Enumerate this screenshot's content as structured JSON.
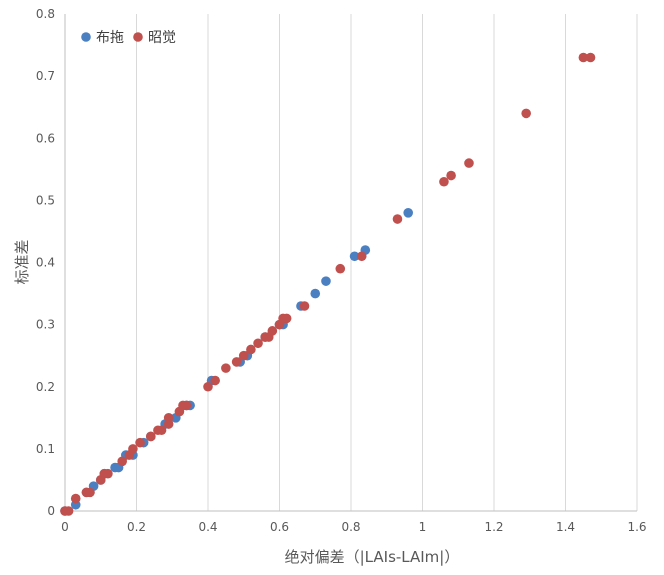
{
  "chart_data": {
    "type": "scatter",
    "xlabel": "绝对偏差（|LAIs-LAIm|）",
    "ylabel": "标准差",
    "xlim": [
      0,
      1.6
    ],
    "ylim": [
      0,
      0.8
    ],
    "x_ticks": [
      "0",
      "0.2",
      "0.4",
      "0.6",
      "0.8",
      "1",
      "1.2",
      "1.4",
      "1.6"
    ],
    "y_ticks": [
      "0",
      "0.1",
      "0.2",
      "0.3",
      "0.4",
      "0.5",
      "0.6",
      "0.7",
      "0.8"
    ],
    "grid": "vertical",
    "legend_position": "top-left",
    "colors": {
      "series1": "#4a7fc1",
      "series2": "#c0504d",
      "grid": "#d9d9d9",
      "axis": "#bfbfbf"
    },
    "series": [
      {
        "name": "布拖",
        "color": "#4a7fc1",
        "points": [
          [
            0.0,
            0.0
          ],
          [
            0.03,
            0.01
          ],
          [
            0.06,
            0.03
          ],
          [
            0.08,
            0.04
          ],
          [
            0.1,
            0.05
          ],
          [
            0.11,
            0.06
          ],
          [
            0.14,
            0.07
          ],
          [
            0.15,
            0.07
          ],
          [
            0.17,
            0.09
          ],
          [
            0.19,
            0.09
          ],
          [
            0.22,
            0.11
          ],
          [
            0.24,
            0.12
          ],
          [
            0.28,
            0.14
          ],
          [
            0.31,
            0.15
          ],
          [
            0.34,
            0.17
          ],
          [
            0.35,
            0.17
          ],
          [
            0.41,
            0.21
          ],
          [
            0.49,
            0.24
          ],
          [
            0.51,
            0.25
          ],
          [
            0.56,
            0.28
          ],
          [
            0.6,
            0.3
          ],
          [
            0.61,
            0.3
          ],
          [
            0.66,
            0.33
          ],
          [
            0.7,
            0.35
          ],
          [
            0.73,
            0.37
          ],
          [
            0.81,
            0.41
          ],
          [
            0.84,
            0.42
          ],
          [
            0.96,
            0.48
          ]
        ]
      },
      {
        "name": "昭觉",
        "color": "#c0504d",
        "points": [
          [
            0.0,
            0.0
          ],
          [
            0.01,
            0.0
          ],
          [
            0.03,
            0.02
          ],
          [
            0.06,
            0.03
          ],
          [
            0.07,
            0.03
          ],
          [
            0.1,
            0.05
          ],
          [
            0.11,
            0.06
          ],
          [
            0.12,
            0.06
          ],
          [
            0.16,
            0.08
          ],
          [
            0.18,
            0.09
          ],
          [
            0.19,
            0.1
          ],
          [
            0.21,
            0.11
          ],
          [
            0.24,
            0.12
          ],
          [
            0.26,
            0.13
          ],
          [
            0.27,
            0.13
          ],
          [
            0.29,
            0.14
          ],
          [
            0.29,
            0.15
          ],
          [
            0.32,
            0.16
          ],
          [
            0.33,
            0.17
          ],
          [
            0.34,
            0.17
          ],
          [
            0.4,
            0.2
          ],
          [
            0.42,
            0.21
          ],
          [
            0.45,
            0.23
          ],
          [
            0.48,
            0.24
          ],
          [
            0.5,
            0.25
          ],
          [
            0.52,
            0.26
          ],
          [
            0.54,
            0.27
          ],
          [
            0.56,
            0.28
          ],
          [
            0.57,
            0.28
          ],
          [
            0.58,
            0.29
          ],
          [
            0.6,
            0.3
          ],
          [
            0.61,
            0.31
          ],
          [
            0.62,
            0.31
          ],
          [
            0.67,
            0.33
          ],
          [
            0.77,
            0.39
          ],
          [
            0.83,
            0.41
          ],
          [
            0.93,
            0.47
          ],
          [
            1.06,
            0.53
          ],
          [
            1.08,
            0.54
          ],
          [
            1.13,
            0.56
          ],
          [
            1.29,
            0.64
          ],
          [
            1.45,
            0.73
          ],
          [
            1.47,
            0.73
          ]
        ]
      }
    ]
  }
}
